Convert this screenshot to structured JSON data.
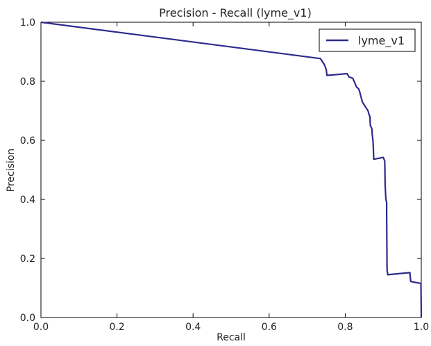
{
  "chart_data": {
    "type": "line",
    "title": "Precision - Recall (lyme_v1)",
    "xlabel": "Recall",
    "ylabel": "Precision",
    "xlim": [
      0.0,
      1.0
    ],
    "ylim": [
      0.0,
      1.0
    ],
    "xticks": [
      "0.0",
      "0.2",
      "0.4",
      "0.6",
      "0.8",
      "1.0"
    ],
    "yticks": [
      "0.0",
      "0.2",
      "0.4",
      "0.6",
      "0.8",
      "1.0"
    ],
    "grid": false,
    "legend_position": "top-right",
    "series": [
      {
        "name": "lyme_v1",
        "color": "#2d2a8c",
        "points": [
          [
            0.0,
            1.0
          ],
          [
            0.735,
            0.877
          ],
          [
            0.74,
            0.866
          ],
          [
            0.745,
            0.857
          ],
          [
            0.75,
            0.84
          ],
          [
            0.752,
            0.82
          ],
          [
            0.805,
            0.826
          ],
          [
            0.81,
            0.815
          ],
          [
            0.82,
            0.81
          ],
          [
            0.825,
            0.795
          ],
          [
            0.83,
            0.78
          ],
          [
            0.835,
            0.775
          ],
          [
            0.838,
            0.765
          ],
          [
            0.842,
            0.745
          ],
          [
            0.845,
            0.73
          ],
          [
            0.85,
            0.72
          ],
          [
            0.855,
            0.71
          ],
          [
            0.86,
            0.7
          ],
          [
            0.862,
            0.69
          ],
          [
            0.865,
            0.68
          ],
          [
            0.866,
            0.65
          ],
          [
            0.87,
            0.64
          ],
          [
            0.871,
            0.62
          ],
          [
            0.873,
            0.6
          ],
          [
            0.874,
            0.57
          ],
          [
            0.875,
            0.536
          ],
          [
            0.9,
            0.542
          ],
          [
            0.904,
            0.53
          ],
          [
            0.905,
            0.45
          ],
          [
            0.907,
            0.4
          ],
          [
            0.909,
            0.39
          ],
          [
            0.909,
            0.35
          ],
          [
            0.91,
            0.16
          ],
          [
            0.912,
            0.145
          ],
          [
            0.97,
            0.152
          ],
          [
            0.972,
            0.122
          ],
          [
            0.98,
            0.12
          ],
          [
            0.99,
            0.118
          ],
          [
            0.999,
            0.115
          ],
          [
            1.0,
            0.0
          ]
        ]
      }
    ]
  }
}
